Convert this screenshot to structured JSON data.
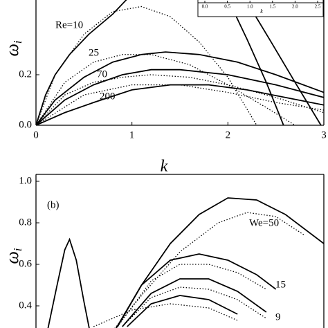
{
  "chart_data": [
    {
      "type": "line",
      "xlim": [
        0,
        3
      ],
      "ylim": [
        0,
        0.5
      ],
      "xticks": [
        0,
        1,
        2,
        3
      ],
      "yticks": [
        {
          "value": 0,
          "label": "0.0"
        },
        {
          "value": 0.2,
          "label": "0.2"
        }
      ],
      "xlabel": "k",
      "ylabel": "ω",
      "ylabel_sub": "i",
      "annotations": [
        "Re=10",
        "25",
        "70",
        "200"
      ],
      "series": [
        {
          "color": "#000",
          "style": "solid",
          "x": [
            0,
            0.1,
            0.2,
            0.35,
            0.55,
            0.8,
            0.95
          ],
          "values": [
            0,
            0.12,
            0.2,
            0.28,
            0.36,
            0.44,
            0.5
          ]
        },
        {
          "color": "#000",
          "style": "dotted",
          "x": [
            0,
            0.2,
            0.5,
            0.8,
            1.1,
            1.4,
            1.7,
            2.0,
            2.3
          ],
          "values": [
            0,
            0.2,
            0.36,
            0.45,
            0.47,
            0.43,
            0.33,
            0.19,
            0
          ]
        },
        {
          "color": "#000",
          "style": "solid",
          "x": [
            2.0,
            2.2,
            2.4,
            2.58
          ],
          "values": [
            0.5,
            0.34,
            0.17,
            0
          ]
        },
        {
          "color": "#000",
          "style": "solid",
          "x": [
            2.18,
            2.45,
            2.7,
            2.97
          ],
          "values": [
            0.5,
            0.33,
            0.17,
            0
          ]
        },
        {
          "color": "#000",
          "style": "solid",
          "x": [
            0,
            0.2,
            0.5,
            0.8,
            1.1,
            1.35,
            1.7,
            2.1,
            2.5,
            3.0
          ],
          "values": [
            0,
            0.1,
            0.19,
            0.25,
            0.28,
            0.29,
            0.28,
            0.25,
            0.2,
            0.13
          ]
        },
        {
          "color": "#000",
          "style": "dotted",
          "x": [
            0,
            0.3,
            0.6,
            0.9,
            1.2,
            1.6,
            2.0,
            2.4,
            2.7
          ],
          "values": [
            0,
            0.17,
            0.25,
            0.28,
            0.28,
            0.24,
            0.16,
            0.07,
            0
          ]
        },
        {
          "color": "#000",
          "style": "solid",
          "x": [
            0,
            0.3,
            0.6,
            0.9,
            1.2,
            1.5,
            2.0,
            2.5,
            3.0
          ],
          "values": [
            0,
            0.1,
            0.16,
            0.2,
            0.22,
            0.22,
            0.2,
            0.16,
            0.11
          ]
        },
        {
          "color": "#000",
          "style": "dotted",
          "x": [
            0,
            0.3,
            0.6,
            0.9,
            1.2,
            1.6,
            2.0,
            2.5,
            3.0
          ],
          "values": [
            0,
            0.12,
            0.17,
            0.19,
            0.2,
            0.19,
            0.16,
            0.11,
            0.05
          ]
        },
        {
          "color": "#000",
          "style": "solid",
          "x": [
            0,
            0.3,
            0.6,
            1.0,
            1.4,
            1.8,
            2.2,
            2.6,
            3.0
          ],
          "values": [
            0,
            0.05,
            0.09,
            0.14,
            0.16,
            0.16,
            0.14,
            0.11,
            0.08
          ]
        },
        {
          "color": "#000",
          "style": "dotted",
          "x": [
            0,
            0.5,
            1.0,
            1.5,
            2.0,
            2.5,
            3.0
          ],
          "values": [
            0,
            0.12,
            0.16,
            0.16,
            0.13,
            0.09,
            0.06
          ]
        }
      ]
    },
    {
      "type": "line",
      "xlim": [
        0,
        3
      ],
      "ylim": [
        0.28,
        1.04
      ],
      "yticks": [
        {
          "value": 0.4,
          "label": "0.4"
        },
        {
          "value": 0.6,
          "label": "0.6"
        },
        {
          "value": 0.8,
          "label": "0.8"
        },
        {
          "value": 1.0,
          "label": "1.0"
        }
      ],
      "ylabel": "ω",
      "ylabel_sub": "i",
      "annotations": [
        "(b)",
        "We=50",
        "15",
        "9"
      ],
      "series": [
        {
          "color": "#000",
          "style": "solid",
          "x": [
            0.12,
            0.22,
            0.3,
            0.35,
            0.42,
            0.5,
            0.56
          ],
          "values": [
            0.28,
            0.5,
            0.67,
            0.72,
            0.62,
            0.42,
            0.28
          ]
        },
        {
          "color": "#000",
          "style": "solid",
          "x": [
            0.82,
            1.1,
            1.4,
            1.7,
            2.0,
            2.3,
            2.6,
            3.0
          ],
          "values": [
            0.28,
            0.5,
            0.7,
            0.84,
            0.92,
            0.91,
            0.84,
            0.7
          ]
        },
        {
          "color": "#000",
          "style": "dotted",
          "x": [
            0.8,
            1.1,
            1.5,
            1.9,
            2.2,
            2.5,
            2.8
          ],
          "values": [
            0.28,
            0.45,
            0.66,
            0.8,
            0.85,
            0.83,
            0.74
          ]
        },
        {
          "color": "#000",
          "style": "solid",
          "x": [
            0.85,
            1.1,
            1.4,
            1.7,
            2.0,
            2.3,
            2.5
          ],
          "values": [
            0.3,
            0.5,
            0.62,
            0.65,
            0.62,
            0.55,
            0.48
          ]
        },
        {
          "color": "#000",
          "style": "dotted",
          "x": [
            0.85,
            1.2,
            1.5,
            1.8,
            2.1,
            2.4
          ],
          "values": [
            0.3,
            0.52,
            0.6,
            0.6,
            0.56,
            0.48
          ]
        },
        {
          "color": "#000",
          "style": "solid",
          "x": [
            0.9,
            1.2,
            1.5,
            1.8,
            2.1,
            2.4
          ],
          "values": [
            0.3,
            0.46,
            0.53,
            0.53,
            0.47,
            0.37
          ]
        },
        {
          "color": "#000",
          "style": "dotted",
          "x": [
            0.9,
            1.2,
            1.5,
            1.8,
            2.1,
            2.4
          ],
          "values": [
            0.3,
            0.44,
            0.49,
            0.48,
            0.43,
            0.34
          ]
        },
        {
          "color": "#000",
          "style": "solid",
          "x": [
            0.95,
            1.2,
            1.5,
            1.8,
            2.1
          ],
          "values": [
            0.3,
            0.41,
            0.45,
            0.43,
            0.36
          ]
        },
        {
          "color": "#000",
          "style": "dotted",
          "x": [
            0.6,
            1.0,
            1.4,
            1.8,
            2.1
          ],
          "values": [
            0.3,
            0.38,
            0.41,
            0.39,
            0.33
          ]
        }
      ]
    },
    {
      "type": "inset",
      "xlim": [
        0,
        2.5
      ],
      "xlabel": "k",
      "xticks": [
        {
          "value": 0,
          "label": "0.0"
        },
        {
          "value": 0.5,
          "label": "0.5"
        },
        {
          "value": 1,
          "label": "1.0"
        },
        {
          "value": 1.5,
          "label": "1.5"
        },
        {
          "value": 2,
          "label": "2.0"
        },
        {
          "value": 2.5,
          "label": "2.5"
        }
      ]
    }
  ]
}
